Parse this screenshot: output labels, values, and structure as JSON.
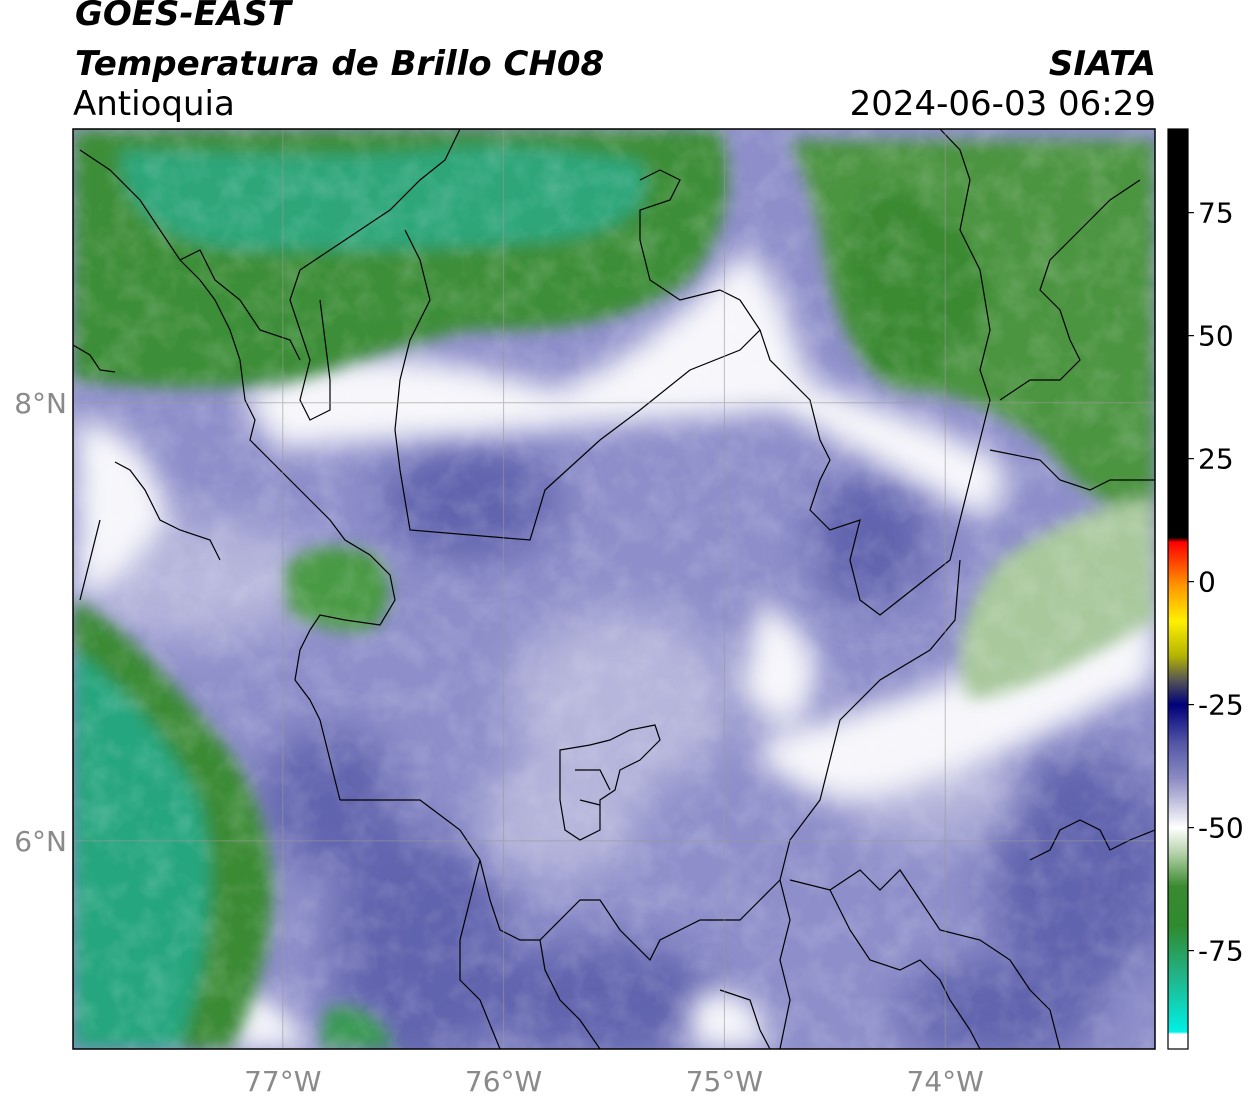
{
  "header": {
    "satellite": "GOES-EAST",
    "product": "Temperatura de Brillo CH08",
    "region": "Antioquia",
    "agency": "SIATA",
    "timestamp": "2024-06-03 06:29"
  },
  "map": {
    "lon_range": [
      -77.95,
      -73.05
    ],
    "lat_range": [
      5.05,
      9.25
    ],
    "lon_ticks": [
      {
        "value": -77,
        "label": "77°W"
      },
      {
        "value": -76,
        "label": "76°W"
      },
      {
        "value": -75,
        "label": "75°W"
      },
      {
        "value": -74,
        "label": "74°W"
      }
    ],
    "lat_ticks": [
      {
        "value": 8,
        "label": "8°N"
      },
      {
        "value": 6,
        "label": "6°N"
      }
    ],
    "grid": true
  },
  "colorbar": {
    "range": [
      -95,
      92
    ],
    "ticks": [
      {
        "value": 75,
        "label": "75"
      },
      {
        "value": 50,
        "label": "50"
      },
      {
        "value": 25,
        "label": "25"
      },
      {
        "value": 0,
        "label": "0"
      },
      {
        "value": -25,
        "label": "-25"
      },
      {
        "value": -50,
        "label": "-50"
      },
      {
        "value": -75,
        "label": "-75"
      }
    ],
    "stops": [
      {
        "value": -95,
        "color": "#ffffff"
      },
      {
        "value": -92,
        "color": "#ffffff"
      },
      {
        "value": -91.5,
        "color": "#00f0e6"
      },
      {
        "value": -80,
        "color": "#22b387"
      },
      {
        "value": -70,
        "color": "#2f8a2f"
      },
      {
        "value": -62,
        "color": "#3a8a30"
      },
      {
        "value": -55,
        "color": "#b8d4ad"
      },
      {
        "value": -50,
        "color": "#ffffff"
      },
      {
        "value": -45,
        "color": "#c4c4e0"
      },
      {
        "value": -40,
        "color": "#8b8bc4"
      },
      {
        "value": -33,
        "color": "#5557a6"
      },
      {
        "value": -25,
        "color": "#00007a"
      },
      {
        "value": -20,
        "color": "#555555"
      },
      {
        "value": -15,
        "color": "#b5b500"
      },
      {
        "value": -8,
        "color": "#fff000"
      },
      {
        "value": -1,
        "color": "#ff9900"
      },
      {
        "value": 8,
        "color": "#ff0000"
      },
      {
        "value": 9,
        "color": "#000000"
      },
      {
        "value": 92,
        "color": "#000000"
      }
    ]
  }
}
